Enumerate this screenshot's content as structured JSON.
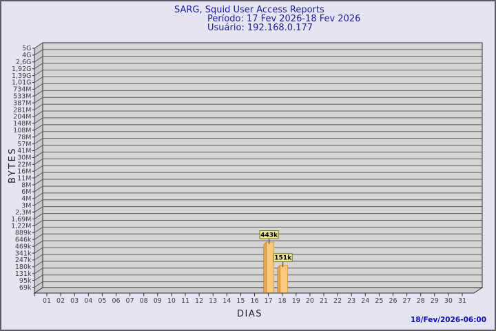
{
  "window": {
    "background": "#e4e4f3",
    "border_color": "#5a5a64"
  },
  "header": {
    "title": "SARG, Squid User Access Reports",
    "period": "Período: 17 Fev 2026-18 Fev 2026",
    "user": "Usuário: 192.168.0.177",
    "text_color": "#1e1e96"
  },
  "chart_data": {
    "type": "bar",
    "title": "SARG, Squid User Access Reports",
    "subtitle": "Período: 17 Fev 2026-18 Fev 2026",
    "user": "Usuário: 192.168.0.177",
    "xlabel": "DIAS",
    "ylabel": "BYTES",
    "y_scale": "log",
    "grid": "on",
    "background": "#d5d5d5",
    "y_tick_labels": [
      "5G",
      "4G",
      "2,6G",
      "1,92G",
      "1,39G",
      "1,01G",
      "734M",
      "533M",
      "387M",
      "281M",
      "204M",
      "148M",
      "108M",
      "78M",
      "57M",
      "41M",
      "30M",
      "22M",
      "16M",
      "11M",
      "8M",
      "6M",
      "4M",
      "3M",
      "2,3M",
      "1,69M",
      "1,22M",
      "889k",
      "646k",
      "469k",
      "341k",
      "247k",
      "180k",
      "131k",
      "95k",
      "69k"
    ],
    "y_min_tick_value": 69000,
    "y_max_tick_value": 5000000000,
    "categories": [
      "01",
      "02",
      "03",
      "04",
      "05",
      "06",
      "07",
      "08",
      "09",
      "10",
      "11",
      "12",
      "13",
      "14",
      "15",
      "16",
      "17",
      "18",
      "19",
      "20",
      "21",
      "22",
      "23",
      "24",
      "25",
      "26",
      "27",
      "28",
      "29",
      "30",
      "31"
    ],
    "bars": [
      {
        "day": "17",
        "value": 443000,
        "label": "443k"
      },
      {
        "day": "18",
        "value": 151000,
        "label": "151k"
      }
    ]
  },
  "footer": {
    "generated": "18/Fev/2026-06:00",
    "color": "#0d0db4"
  },
  "colors": {
    "bar_face": "#fbc87c",
    "bar_side": "#e6a34e",
    "bar_outline": "#b5803a",
    "callout_bg": "#f2ee9f",
    "callout_border": "#72720e",
    "callout_text": "#000000",
    "wall": "#cbcbcb",
    "grid_line": "#5c5c5c",
    "plot_border": "#2f2f2f",
    "axis_text": "#3d3d3d"
  }
}
